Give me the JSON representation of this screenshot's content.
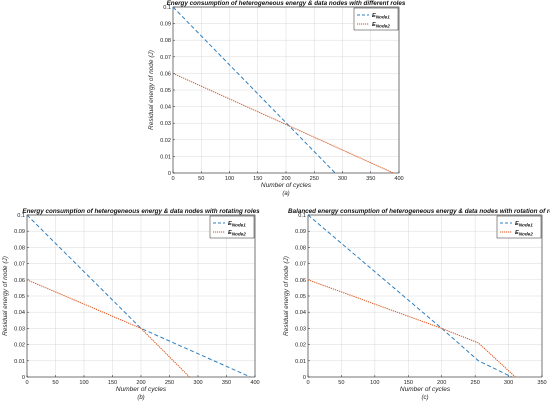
{
  "colors": {
    "node1": "#2e7fc0",
    "node2": "#d95319",
    "grid": "#d9d9d9",
    "axis": "#262626"
  },
  "chart_data": [
    {
      "type": "line",
      "title": "Energy consumption of heterogeneous energy & data nodes with different roles",
      "caption": "(a)",
      "xlabel": "Number of cycles",
      "ylabel": "Residual energy of node (J)",
      "xlim": [
        0,
        400
      ],
      "ylim": [
        0,
        0.1
      ],
      "xticks": [
        0,
        50,
        100,
        150,
        200,
        250,
        300,
        350,
        400
      ],
      "yticks": [
        0,
        0.01,
        0.02,
        0.03,
        0.04,
        0.05,
        0.06,
        0.07,
        0.08,
        0.09,
        0.1
      ],
      "grid": true,
      "legend_position": "top-right",
      "series": [
        {
          "name": "E",
          "subscript": "Node1",
          "style": "dashed",
          "color": "#2e7fc0",
          "x": [
            0,
            287
          ],
          "y": [
            0.1,
            0
          ]
        },
        {
          "name": "E",
          "subscript": "Node2",
          "style": "dotted",
          "color": "#d95319",
          "x": [
            0,
            390
          ],
          "y": [
            0.06,
            0
          ]
        }
      ]
    },
    {
      "type": "line",
      "title": "Energy consumption of heterogeneous energy & data nodes with rotating roles",
      "caption": "(b)",
      "xlabel": "Number of cycles",
      "ylabel": "Residual energy of node (J)",
      "xlim": [
        0,
        400
      ],
      "ylim": [
        0,
        0.1
      ],
      "xticks": [
        0,
        50,
        100,
        150,
        200,
        250,
        300,
        350,
        400
      ],
      "yticks": [
        0,
        0.01,
        0.02,
        0.03,
        0.04,
        0.05,
        0.06,
        0.07,
        0.08,
        0.09,
        0.1
      ],
      "grid": true,
      "legend_position": "top-right",
      "series": [
        {
          "name": "E",
          "subscript": "Node1",
          "style": "dashed",
          "color": "#2e7fc0",
          "x": [
            0,
            200,
            392
          ],
          "y": [
            0.1,
            0.03,
            0
          ]
        },
        {
          "name": "E",
          "subscript": "Node2",
          "style": "dotted",
          "color": "#d95319",
          "x": [
            0,
            200,
            285
          ],
          "y": [
            0.06,
            0.03,
            0
          ]
        }
      ]
    },
    {
      "type": "line",
      "title": "Balanced energy consumption of heterogeneous energy & data nodes with rotation of roles",
      "caption": "(c)",
      "xlabel": "Number of cycles",
      "ylabel": "Residual energy of node (J)",
      "xlim": [
        0,
        350
      ],
      "ylim": [
        0,
        0.1
      ],
      "xticks": [
        0,
        50,
        100,
        150,
        200,
        250,
        300,
        350
      ],
      "yticks": [
        0,
        0.01,
        0.02,
        0.03,
        0.04,
        0.05,
        0.06,
        0.07,
        0.08,
        0.09,
        0.1
      ],
      "grid": true,
      "legend_position": "top-right",
      "series": [
        {
          "name": "E",
          "subscript": "Node1",
          "style": "dashed",
          "color": "#2e7fc0",
          "x": [
            0,
            200,
            255,
            305
          ],
          "y": [
            0.1,
            0.03,
            0.01,
            0
          ]
        },
        {
          "name": "E",
          "subscript": "Node2",
          "style": "dotted",
          "color": "#d95319",
          "x": [
            0,
            200,
            255,
            310
          ],
          "y": [
            0.06,
            0.03,
            0.021,
            0
          ]
        }
      ]
    }
  ]
}
